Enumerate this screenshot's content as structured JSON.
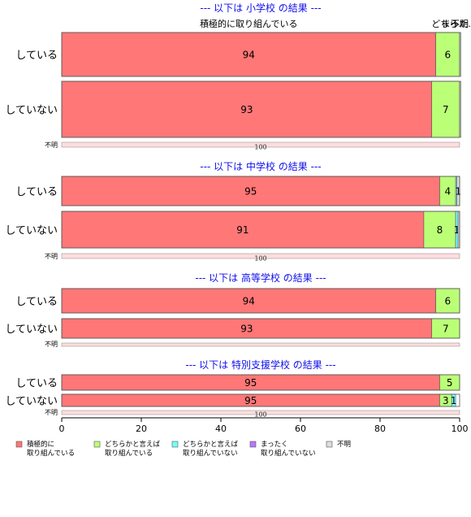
{
  "chart_data": {
    "type": "bar",
    "orientation": "horizontal",
    "stacked": true,
    "xlim": [
      0,
      100
    ],
    "x_ticks": [
      0,
      20,
      40,
      60,
      80,
      100
    ],
    "grid": false,
    "legend_position": "bottom",
    "top_labels": [
      {
        "text": "積極的に取り組んでいる",
        "x": 47
      },
      {
        "text": "どちら..",
        "x": 97
      },
      {
        "text": "まった..",
        "x": 99.5
      },
      {
        "text": "不明",
        "x": 100
      }
    ],
    "series": [
      {
        "name": "積極的に\n取り組んでいる",
        "color": "#ff7777"
      },
      {
        "name": "どちらかと言えば\n取り組んでいる",
        "color": "#bbff77"
      },
      {
        "name": "どちらかと言えば\n取り組んでいない",
        "color": "#77ffff"
      },
      {
        "name": "まったく\n取り組んでいない",
        "color": "#bb77ff"
      },
      {
        "name": "不明",
        "color": "#dddddd"
      }
    ],
    "unknown_bar_color": "#ffdddd",
    "panels": [
      {
        "title": "--- 以下は 小学校 の結果 ---",
        "rows": [
          {
            "label": "している",
            "values": [
              94,
              6,
              0,
              0,
              0.3
            ],
            "value_labels": [
              "94",
              "6",
              "",
              "",
              ""
            ]
          },
          {
            "label": "していない",
            "values": [
              93,
              7,
              0,
              0,
              0.3
            ],
            "value_labels": [
              "93",
              "7",
              "",
              "",
              ""
            ]
          }
        ],
        "unknown": {
          "label": "不明",
          "value": 100,
          "value_label": "100"
        }
      },
      {
        "title": "--- 以下は 中学校 の結果 ---",
        "rows": [
          {
            "label": "している",
            "values": [
              95,
              4,
              0.3,
              0,
              0.7
            ],
            "value_labels": [
              "95",
              "4",
              "",
              "",
              "1"
            ]
          },
          {
            "label": "していない",
            "values": [
              91,
              8,
              0.6,
              0,
              0.4
            ],
            "value_labels": [
              "91",
              "8",
              "1",
              "",
              ""
            ]
          }
        ],
        "unknown": {
          "label": "不明",
          "value": 100,
          "value_label": "100"
        }
      },
      {
        "title": "--- 以下は 高等学校 の結果 ---",
        "rows": [
          {
            "label": "している",
            "values": [
              94,
              6,
              0,
              0,
              0
            ],
            "value_labels": [
              "94",
              "6",
              "",
              "",
              ""
            ]
          },
          {
            "label": "していない",
            "values": [
              93,
              7,
              0,
              0,
              0
            ],
            "value_labels": [
              "93",
              "7",
              "",
              "",
              ""
            ]
          }
        ],
        "unknown": {
          "label": "不明",
          "value": 100,
          "value_label": ""
        }
      },
      {
        "title": "--- 以下は 特別支援学校 の結果 ---",
        "rows": [
          {
            "label": "している",
            "values": [
              95,
              5,
              0,
              0,
              0
            ],
            "value_labels": [
              "95",
              "5",
              "",
              "",
              ""
            ]
          },
          {
            "label": "していない",
            "values": [
              95,
              3,
              1,
              0,
              0
            ],
            "value_labels": [
              "95",
              "3",
              "1",
              "",
              ""
            ]
          }
        ],
        "unknown": {
          "label": "不明",
          "value": 100,
          "value_label": "100"
        }
      }
    ]
  }
}
